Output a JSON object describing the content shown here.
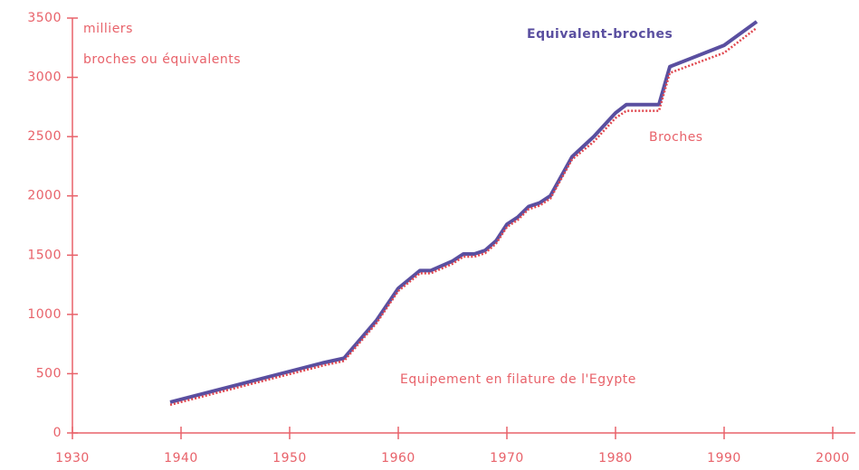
{
  "chart_data": {
    "type": "line",
    "title": "Equipement en filature de l'Egypte",
    "annotations": [
      "milliers",
      "broches ou équivalents"
    ],
    "x": [
      1939,
      1953,
      1955,
      1958,
      1960,
      1962,
      1963,
      1965,
      1966,
      1967,
      1968,
      1969,
      1970,
      1971,
      1972,
      1973,
      1974,
      1976,
      1978,
      1980,
      1981,
      1984,
      1985,
      1990,
      1993
    ],
    "series": [
      {
        "name": "Broches",
        "color": "#e0474f",
        "values": [
          260,
          590,
          630,
          950,
          1220,
          1370,
          1370,
          1450,
          1510,
          1510,
          1540,
          1620,
          1760,
          1820,
          1910,
          1940,
          2000,
          2330,
          2480,
          2680,
          2740,
          2740,
          3060,
          3230,
          3440
        ]
      },
      {
        "name": "Equivalent-broches",
        "color": "#5a4fa0",
        "values": [
          260,
          590,
          630,
          950,
          1220,
          1370,
          1370,
          1450,
          1510,
          1510,
          1540,
          1620,
          1760,
          1820,
          1910,
          1940,
          2000,
          2330,
          2500,
          2700,
          2770,
          2770,
          3090,
          3270,
          3470
        ]
      }
    ],
    "xlim": [
      1930,
      2000
    ],
    "xticks": [
      1930,
      1940,
      1950,
      1960,
      1970,
      1980,
      1990,
      2000
    ],
    "ylim": [
      0,
      3500
    ],
    "yticks": [
      0,
      500,
      1000,
      1500,
      2000,
      2500,
      3000,
      3500
    ]
  }
}
